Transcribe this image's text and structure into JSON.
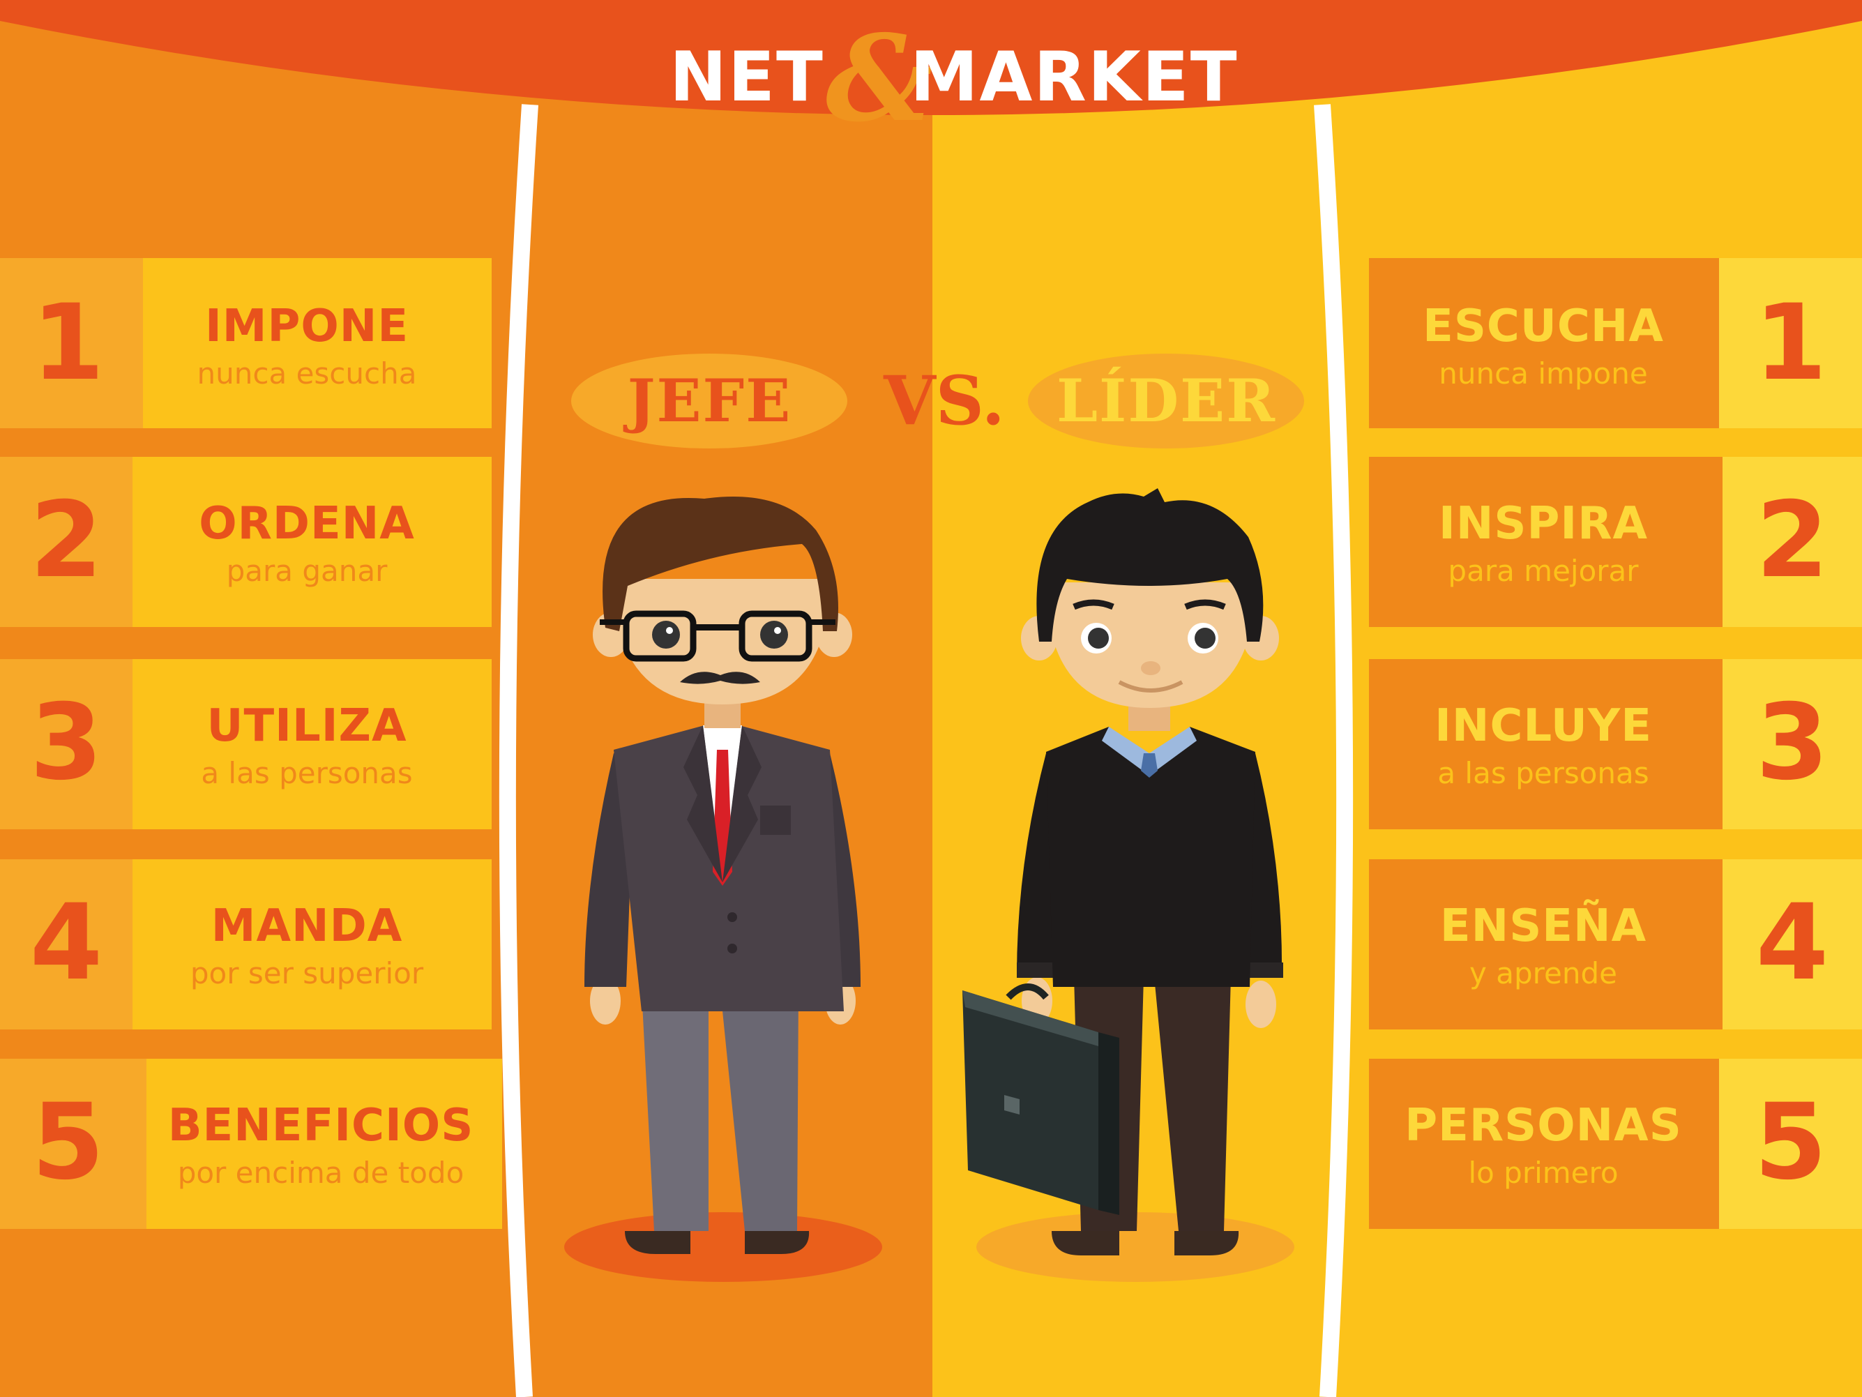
{
  "brand": {
    "before": "NET",
    "amp": "&",
    "after": "MARKET"
  },
  "versus": {
    "left_badge": "JEFE",
    "vs": "VS.",
    "right_badge": "LÍDER"
  },
  "jefe": [
    {
      "num": "1",
      "title": "IMPONE",
      "sub": "nunca escucha"
    },
    {
      "num": "2",
      "title": "ORDENA",
      "sub": "para ganar"
    },
    {
      "num": "3",
      "title": "UTILIZA",
      "sub": "a las personas"
    },
    {
      "num": "4",
      "title": "MANDA",
      "sub": "por ser superior"
    },
    {
      "num": "5",
      "title": "BENEFICIOS",
      "sub": "por encima de todo"
    }
  ],
  "lider": [
    {
      "num": "1",
      "title": "ESCUCHA",
      "sub": "nunca impone"
    },
    {
      "num": "2",
      "title": "INSPIRA",
      "sub": "para mejorar"
    },
    {
      "num": "3",
      "title": "INCLUYE",
      "sub": "a las personas"
    },
    {
      "num": "4",
      "title": "ENSEÑA",
      "sub": "y aprende"
    },
    {
      "num": "5",
      "title": "PERSONAS",
      "sub": "lo primero"
    }
  ],
  "colors": {
    "red_orange": "#e8521c",
    "orange": "#f0881a",
    "yellow": "#fcc21a",
    "light_yellow": "#fdd83a",
    "white": "#ffffff"
  },
  "icons": [
    "boss-figure-icon",
    "leader-figure-icon",
    "briefcase-icon"
  ]
}
